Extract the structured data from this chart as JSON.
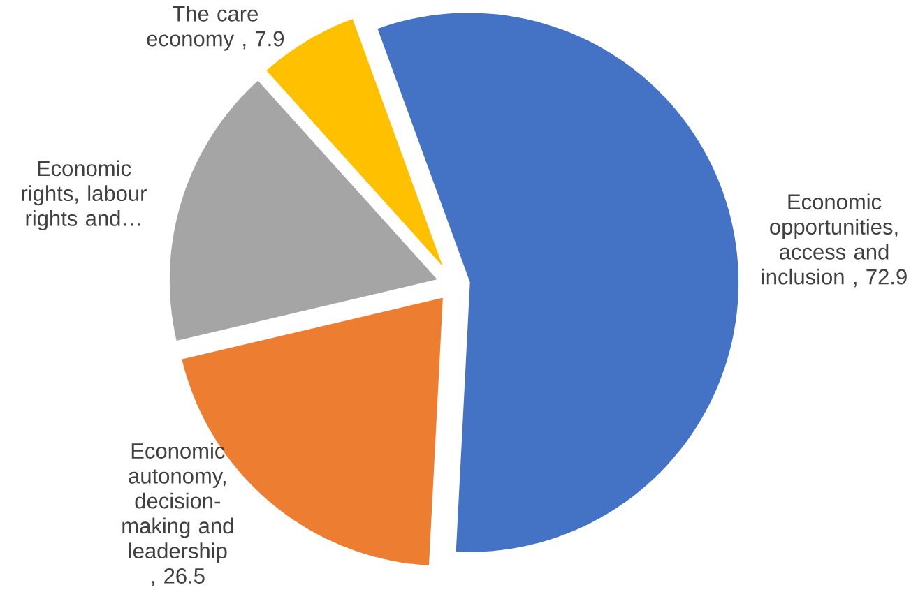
{
  "chart_data": {
    "type": "pie",
    "categories": [
      "Economic opportunities, access and inclusion",
      "Economic autonomy, decision-making and leadership",
      "Economic rights, labour rights and…",
      "The care economy"
    ],
    "values": [
      72.9,
      26.5,
      22,
      7.9
    ],
    "value_labels": [
      ", 72.9",
      ", 26.5",
      null,
      ", 7.9"
    ],
    "colors": [
      "#4472c4",
      "#ed7d31",
      "#a5a5a5",
      "#ffc000"
    ]
  }
}
